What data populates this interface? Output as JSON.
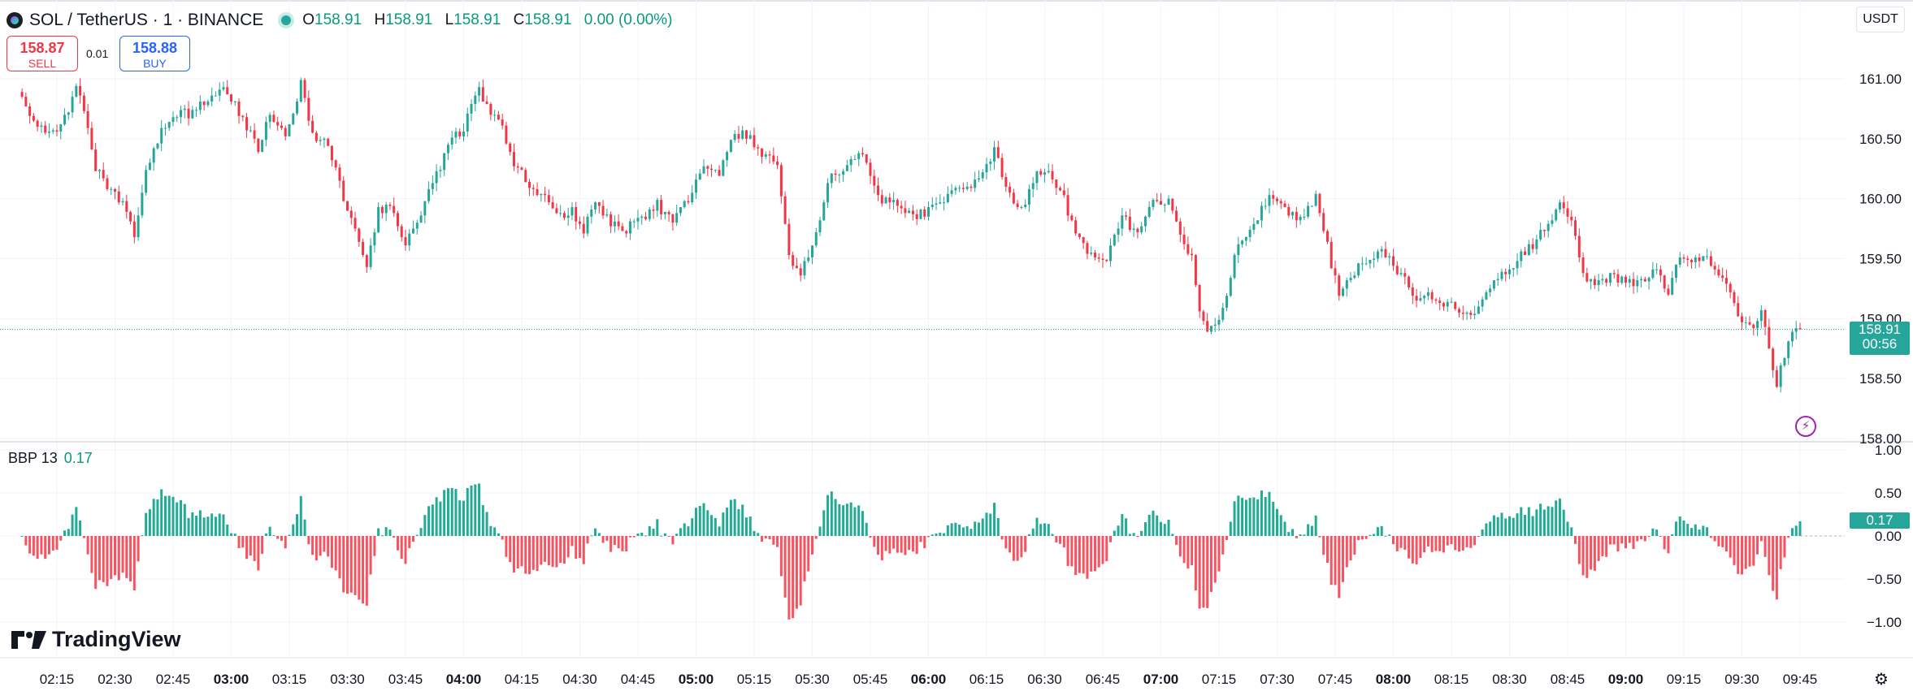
{
  "header": {
    "symbol": "SOL / TetherUS · 1 · BINANCE",
    "o_label": "O",
    "o": "158.91",
    "h_label": "H",
    "h": "158.91",
    "l_label": "L",
    "l": "158.91",
    "c_label": "C",
    "c": "158.91",
    "change": "0.00 (0.00%)"
  },
  "trade": {
    "sell_price": "158.87",
    "sell_label": "SELL",
    "buy_price": "158.88",
    "buy_label": "BUY",
    "spread": "0.01"
  },
  "currency": "USDT",
  "indicator": {
    "name": "BBP 13",
    "value": "0.17"
  },
  "last_price": {
    "price": "158.91",
    "countdown": "00:56",
    "indicator_value": "0.17"
  },
  "brand": "TradingView",
  "colors": {
    "up": "#26a69a",
    "down": "#f23645",
    "osc_up": "#22ab94",
    "osc_down": "#f7525f",
    "grid": "#f0f3fa"
  },
  "chart_data": [
    {
      "type": "candlestick",
      "series_key": "close",
      "time_start": "02:06",
      "interval_minutes": 1,
      "x_ticks": [
        "02:15",
        "02:30",
        "02:45",
        "03:00",
        "03:15",
        "03:30",
        "03:45",
        "04:00",
        "04:15",
        "04:30",
        "04:45",
        "05:00",
        "05:15",
        "05:30",
        "05:45",
        "06:00",
        "06:15",
        "06:30",
        "06:45",
        "07:00",
        "07:15",
        "07:30",
        "07:45",
        "08:00",
        "08:15",
        "08:30",
        "08:45",
        "09:00",
        "09:15",
        "09:30",
        "09:45"
      ],
      "bold_ticks": [
        "03:00",
        "04:00",
        "05:00",
        "06:00",
        "07:00",
        "08:00",
        "09:00"
      ],
      "y_ticks": [
        "161.00",
        "160.50",
        "160.00",
        "159.50",
        "159.00",
        "158.50",
        "158.00"
      ],
      "ylim": [
        158.0,
        161.0
      ],
      "anchors": [
        [
          "02:06",
          160.85
        ],
        [
          "02:10",
          160.62
        ],
        [
          "02:14",
          160.55
        ],
        [
          "02:18",
          160.7
        ],
        [
          "02:20",
          160.95
        ],
        [
          "02:22",
          160.7
        ],
        [
          "02:25",
          160.25
        ],
        [
          "02:28",
          160.1
        ],
        [
          "02:32",
          159.95
        ],
        [
          "02:35",
          159.7
        ],
        [
          "02:38",
          160.2
        ],
        [
          "02:41",
          160.5
        ],
        [
          "02:46",
          160.72
        ],
        [
          "02:50",
          160.7
        ],
        [
          "02:54",
          160.85
        ],
        [
          "02:58",
          160.9
        ],
        [
          "03:00",
          160.85
        ],
        [
          "03:04",
          160.6
        ],
        [
          "03:07",
          160.4
        ],
        [
          "03:10",
          160.7
        ],
        [
          "03:14",
          160.5
        ],
        [
          "03:18",
          160.95
        ],
        [
          "03:21",
          160.55
        ],
        [
          "03:25",
          160.45
        ],
        [
          "03:30",
          159.9
        ],
        [
          "03:35",
          159.45
        ],
        [
          "03:38",
          159.9
        ],
        [
          "03:41",
          159.95
        ],
        [
          "03:45",
          159.6
        ],
        [
          "03:49",
          159.9
        ],
        [
          "03:53",
          160.2
        ],
        [
          "03:57",
          160.5
        ],
        [
          "04:00",
          160.6
        ],
        [
          "04:04",
          160.9
        ],
        [
          "04:07",
          160.7
        ],
        [
          "04:10",
          160.6
        ],
        [
          "04:13",
          160.3
        ],
        [
          "04:17",
          160.1
        ],
        [
          "04:21",
          160.0
        ],
        [
          "04:25",
          159.85
        ],
        [
          "04:28",
          159.9
        ],
        [
          "04:31",
          159.75
        ],
        [
          "04:34",
          159.95
        ],
        [
          "04:38",
          159.8
        ],
        [
          "04:42",
          159.75
        ],
        [
          "04:46",
          159.85
        ],
        [
          "04:50",
          159.95
        ],
        [
          "04:54",
          159.8
        ],
        [
          "04:58",
          160.0
        ],
        [
          "05:02",
          160.25
        ],
        [
          "05:06",
          160.2
        ],
        [
          "05:10",
          160.55
        ],
        [
          "05:14",
          160.5
        ],
        [
          "05:18",
          160.35
        ],
        [
          "05:21",
          160.3
        ],
        [
          "05:24",
          159.5
        ],
        [
          "05:27",
          159.35
        ],
        [
          "05:31",
          159.7
        ],
        [
          "05:34",
          160.15
        ],
        [
          "05:38",
          160.25
        ],
        [
          "05:42",
          160.4
        ],
        [
          "05:45",
          160.2
        ],
        [
          "05:48",
          160.0
        ],
        [
          "05:52",
          159.95
        ],
        [
          "05:56",
          159.85
        ],
        [
          "06:00",
          159.9
        ],
        [
          "06:04",
          160.0
        ],
        [
          "06:08",
          160.1
        ],
        [
          "06:13",
          160.15
        ],
        [
          "06:17",
          160.4
        ],
        [
          "06:20",
          160.1
        ],
        [
          "06:24",
          159.9
        ],
        [
          "06:28",
          160.25
        ],
        [
          "06:31",
          160.2
        ],
        [
          "06:34",
          160.1
        ],
        [
          "06:37",
          159.8
        ],
        [
          "06:40",
          159.6
        ],
        [
          "06:43",
          159.5
        ],
        [
          "06:46",
          159.5
        ],
        [
          "06:50",
          159.85
        ],
        [
          "06:54",
          159.7
        ],
        [
          "06:58",
          159.95
        ],
        [
          "07:02",
          160.0
        ],
        [
          "07:05",
          159.7
        ],
        [
          "07:08",
          159.5
        ],
        [
          "07:10",
          159.1
        ],
        [
          "07:12",
          158.85
        ],
        [
          "07:16",
          159.05
        ],
        [
          "07:19",
          159.55
        ],
        [
          "07:22",
          159.65
        ],
        [
          "07:25",
          159.85
        ],
        [
          "07:28",
          160.05
        ],
        [
          "07:32",
          159.9
        ],
        [
          "07:36",
          159.85
        ],
        [
          "07:40",
          160.0
        ],
        [
          "07:43",
          159.6
        ],
        [
          "07:46",
          159.2
        ],
        [
          "07:50",
          159.4
        ],
        [
          "07:54",
          159.5
        ],
        [
          "07:57",
          159.55
        ],
        [
          "08:00",
          159.45
        ],
        [
          "08:03",
          159.35
        ],
        [
          "08:06",
          159.15
        ],
        [
          "08:09",
          159.2
        ],
        [
          "08:12",
          159.1
        ],
        [
          "08:15",
          159.1
        ],
        [
          "08:18",
          159.05
        ],
        [
          "08:21",
          159.0
        ],
        [
          "08:24",
          159.25
        ],
        [
          "08:28",
          159.35
        ],
        [
          "08:32",
          159.5
        ],
        [
          "08:36",
          159.6
        ],
        [
          "08:40",
          159.8
        ],
        [
          "08:43",
          159.95
        ],
        [
          "08:46",
          159.8
        ],
        [
          "08:49",
          159.4
        ],
        [
          "08:52",
          159.25
        ],
        [
          "08:56",
          159.35
        ],
        [
          "09:00",
          159.3
        ],
        [
          "09:04",
          159.3
        ],
        [
          "09:08",
          159.4
        ],
        [
          "09:11",
          159.2
        ],
        [
          "09:14",
          159.55
        ],
        [
          "09:17",
          159.45
        ],
        [
          "09:20",
          159.55
        ],
        [
          "09:24",
          159.4
        ],
        [
          "09:27",
          159.2
        ],
        [
          "09:30",
          158.95
        ],
        [
          "09:33",
          158.9
        ],
        [
          "09:35",
          159.05
        ],
        [
          "09:37",
          158.75
        ],
        [
          "09:39",
          158.45
        ],
        [
          "09:41",
          158.7
        ],
        [
          "09:43",
          158.85
        ],
        [
          "09:45",
          158.91
        ]
      ]
    },
    {
      "type": "histogram",
      "series_key": "bbp",
      "title": "BBP 13",
      "y_ticks": [
        "1.00",
        "0.50",
        "0.00",
        "−0.50",
        "−1.00"
      ],
      "ylim": [
        -1.0,
        1.0
      ],
      "last_value": 0.17
    }
  ]
}
